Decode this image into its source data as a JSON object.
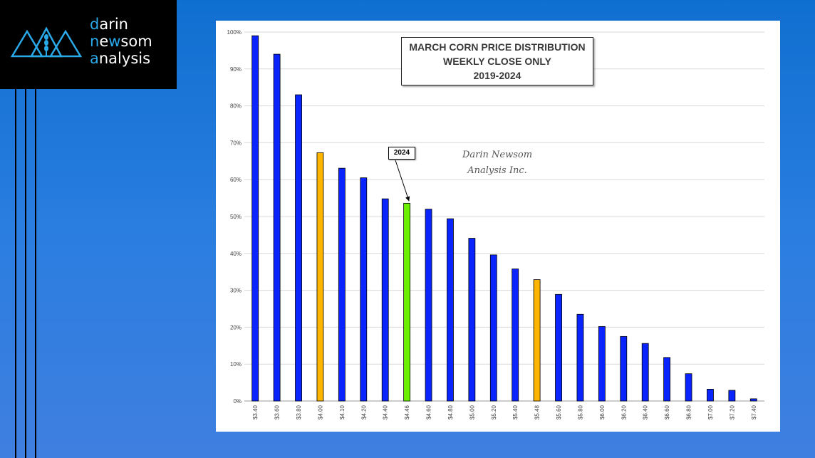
{
  "logo": {
    "line1_first": "d",
    "line1_rest": "arin",
    "line2_first": "n",
    "line2_mid": "e",
    "line2_hl": "w",
    "line2_rest": "som",
    "line3_first": "a",
    "line3_rest": "nalysis",
    "accent_color": "#2aa9e8"
  },
  "chart_data": {
    "type": "bar",
    "title_lines": [
      "MARCH CORN PRICE DISTRIBUTION",
      "WEEKLY CLOSE ONLY",
      "2019-2024"
    ],
    "watermark_lines": [
      "Darin Newsom",
      "Analysis Inc."
    ],
    "callout_label": "2024",
    "callout_category": "$4.46",
    "categories": [
      "$3.40",
      "$3.60",
      "$3.80",
      "$4.00",
      "$4.10",
      "$4.20",
      "$4.40",
      "$4.46",
      "$4.60",
      "$4.80",
      "$5.00",
      "$5.20",
      "$5.40",
      "$5.48",
      "$5.60",
      "$5.80",
      "$6.00",
      "$6.20",
      "$6.40",
      "$6.60",
      "$6.80",
      "$7.00",
      "$7.20",
      "$7.40"
    ],
    "values": [
      99,
      94,
      83,
      67.3,
      63.1,
      60.5,
      54.8,
      53.6,
      52,
      49.4,
      44.1,
      39.6,
      35.8,
      32.9,
      28.9,
      23.5,
      20.2,
      17.5,
      15.6,
      11.8,
      7.4,
      3.2,
      2.9,
      0.6
    ],
    "bar_colors": [
      "#0a24ff",
      "#0a24ff",
      "#0a24ff",
      "#ffb400",
      "#0a24ff",
      "#0a24ff",
      "#0a24ff",
      "#6cf000",
      "#0a24ff",
      "#0a24ff",
      "#0a24ff",
      "#0a24ff",
      "#0a24ff",
      "#ffb400",
      "#0a24ff",
      "#0a24ff",
      "#0a24ff",
      "#0a24ff",
      "#0a24ff",
      "#0a24ff",
      "#0a24ff",
      "#0a24ff",
      "#0a24ff",
      "#0a24ff"
    ],
    "yticks": [
      "0%",
      "10%",
      "20%",
      "30%",
      "40%",
      "50%",
      "60%",
      "70%",
      "80%",
      "90%",
      "100%"
    ],
    "ylim": [
      0,
      100
    ],
    "grid": true,
    "xlabel": "",
    "ylabel": ""
  }
}
